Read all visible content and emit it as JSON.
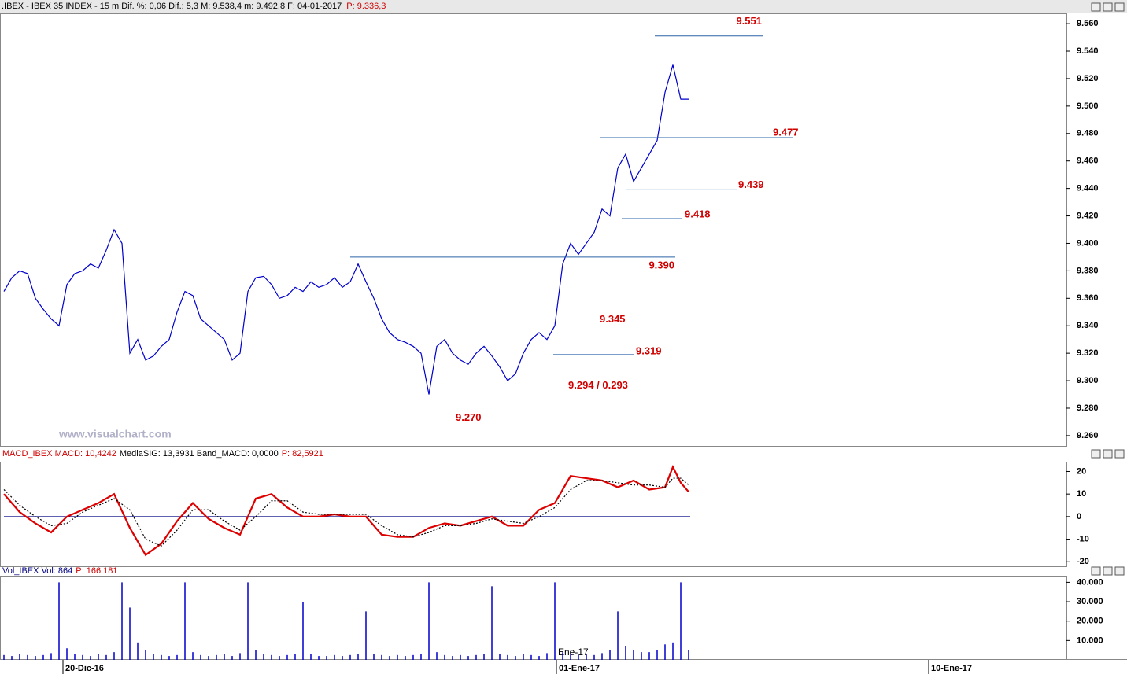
{
  "header": {
    "title": ".IBEX - IBEX 35 INDEX - 15 m  Dif. %: 0,06  Dif.: 5,3  M: 9.538,4  m: 9.492,8  F: 04-01-2017",
    "price": "P: 9.336,3"
  },
  "watermark": "www.visualchart.com",
  "chart_data": [
    {
      "type": "line",
      "title": "IBEX 35 INDEX",
      "x": [
        0,
        1,
        2,
        3,
        4,
        5,
        6,
        7,
        8,
        9,
        10,
        11,
        12,
        13,
        14,
        15,
        16,
        17,
        18,
        19,
        20,
        21,
        22,
        23,
        24,
        25,
        26,
        27,
        28,
        29,
        30,
        31,
        32,
        33,
        34,
        35,
        36,
        37,
        38,
        39,
        40,
        41,
        42,
        43,
        44,
        45,
        46,
        47,
        48,
        49,
        50,
        51,
        52,
        53,
        54,
        55,
        56,
        57,
        58,
        59,
        60,
        61,
        62,
        63,
        64,
        65,
        66,
        67,
        68,
        69,
        70,
        71,
        72,
        73,
        74,
        75,
        76,
        77,
        78,
        79,
        80,
        81,
        82,
        83,
        84,
        85,
        86,
        87
      ],
      "series": [
        {
          "name": "IBEX",
          "color": "#0000cc",
          "values": [
            9.365,
            9.375,
            9.38,
            9.378,
            9.36,
            9.352,
            9.345,
            9.34,
            9.37,
            9.378,
            9.38,
            9.385,
            9.382,
            9.395,
            9.41,
            9.4,
            9.32,
            9.33,
            9.315,
            9.318,
            9.325,
            9.33,
            9.35,
            9.365,
            9.362,
            9.345,
            9.34,
            9.335,
            9.33,
            9.315,
            9.32,
            9.365,
            9.375,
            9.376,
            9.37,
            9.36,
            9.362,
            9.368,
            9.365,
            9.372,
            9.368,
            9.37,
            9.375,
            9.368,
            9.372,
            9.385,
            9.372,
            9.36,
            9.345,
            9.335,
            9.33,
            9.328,
            9.325,
            9.32,
            9.29,
            9.325,
            9.33,
            9.32,
            9.315,
            9.312,
            9.32,
            9.325,
            9.318,
            9.31,
            9.3,
            9.305,
            9.32,
            9.33,
            9.335,
            9.33,
            9.34,
            9.385,
            9.4,
            9.392,
            9.4,
            9.408,
            9.425,
            9.42,
            9.455,
            9.465,
            9.445,
            9.455,
            9.465,
            9.475,
            9.51,
            9.53,
            9.505,
            9.505
          ]
        }
      ],
      "xlim": [
        0,
        135
      ],
      "ylim": [
        9.2525,
        9.5675
      ],
      "yticks": [
        {
          "value": 9.26,
          "label": "9.260"
        },
        {
          "value": 9.28,
          "label": "9.280"
        },
        {
          "value": 9.3,
          "label": "9.300"
        },
        {
          "value": 9.32,
          "label": "9.320"
        },
        {
          "value": 9.34,
          "label": "9.340"
        },
        {
          "value": 9.36,
          "label": "9.360"
        },
        {
          "value": 9.38,
          "label": "9.380"
        },
        {
          "value": 9.4,
          "label": "9.400"
        },
        {
          "value": 9.42,
          "label": "9.420"
        },
        {
          "value": 9.44,
          "label": "9.440"
        },
        {
          "value": 9.46,
          "label": "9.460"
        },
        {
          "value": 9.48,
          "label": "9.480"
        },
        {
          "value": 9.5,
          "label": "9.500"
        },
        {
          "value": 9.52,
          "label": "9.520"
        },
        {
          "value": 9.54,
          "label": "9.540"
        },
        {
          "value": 9.56,
          "label": "9.560"
        }
      ],
      "levels": [
        {
          "value": 9.551,
          "label": "9.551",
          "x": [
            82.7,
            96.5
          ]
        },
        {
          "value": 9.477,
          "label": "9.477",
          "x": [
            75.7,
            100.3
          ]
        },
        {
          "value": 9.439,
          "label": "9.439",
          "x": [
            79,
            93.2
          ]
        },
        {
          "value": 9.418,
          "label": "9.418",
          "x": [
            78.5,
            86.2
          ]
        },
        {
          "value": 9.39,
          "label": "9.390",
          "x": [
            44,
            85.3
          ]
        },
        {
          "value": 9.345,
          "label": "9.345",
          "x": [
            34.3,
            75.2
          ]
        },
        {
          "value": 9.319,
          "label": "9.319",
          "x": [
            69.8,
            80
          ]
        },
        {
          "value": 9.294,
          "label": "9.294 / 0.293",
          "x": [
            63.6,
            71.5
          ]
        },
        {
          "value": 9.27,
          "label": "9.270",
          "x": [
            53.6,
            57.3
          ]
        }
      ],
      "level_color": "#2a64a8",
      "label_color": "#d00000"
    },
    {
      "type": "line",
      "title": "MACD_IBEX MACD: 10,4242",
      "subtitle": "MediaSIG: 13,3931  Band_MACD: 0,0000",
      "note": "P: 82,5921",
      "x": [
        0,
        2,
        4,
        6,
        8,
        10,
        12,
        14,
        16,
        18,
        20,
        22,
        24,
        26,
        28,
        30,
        32,
        34,
        36,
        38,
        40,
        42,
        44,
        46,
        48,
        50,
        52,
        54,
        56,
        58,
        60,
        62,
        64,
        66,
        68,
        70,
        72,
        74,
        76,
        78,
        80,
        82,
        84,
        85,
        86,
        87
      ],
      "series": [
        {
          "name": "MACD",
          "color": "#dd0000",
          "values": [
            10,
            2,
            -3,
            -7,
            0,
            3,
            6,
            10,
            -5,
            -17,
            -12,
            -2,
            6,
            -1,
            -5,
            -8,
            8,
            10,
            4,
            0,
            0,
            1,
            0,
            0,
            -8,
            -9,
            -9,
            -5,
            -3,
            -4,
            -2,
            0,
            -4,
            -4,
            3,
            6,
            18,
            17,
            16,
            13,
            16,
            12,
            13,
            22,
            15,
            11
          ]
        },
        {
          "name": "MediaSIG",
          "color": "#000000",
          "values": [
            12,
            5,
            0,
            -4,
            -3,
            2,
            5,
            8,
            3,
            -10,
            -13,
            -6,
            3,
            3,
            -2,
            -6,
            0,
            7,
            7,
            2,
            1,
            1,
            1,
            1,
            -4,
            -8,
            -9,
            -7,
            -4,
            -4,
            -3,
            -1,
            -2,
            -3,
            0,
            4,
            12,
            16,
            16,
            15,
            14,
            14,
            13,
            17,
            17,
            14
          ]
        }
      ],
      "band": 0,
      "xlim": [
        0,
        135
      ],
      "ylim": [
        -22,
        24
      ],
      "yticks": [
        20,
        10,
        0,
        -10,
        -20
      ]
    },
    {
      "type": "bar",
      "title": "Vol_IBEX Vol: 864",
      "note": "P: 166.181",
      "x": [
        0,
        1,
        2,
        3,
        4,
        5,
        6,
        7,
        8,
        9,
        10,
        11,
        12,
        13,
        14,
        15,
        16,
        17,
        18,
        19,
        20,
        21,
        22,
        23,
        24,
        25,
        26,
        27,
        28,
        29,
        30,
        31,
        32,
        33,
        34,
        35,
        36,
        37,
        38,
        39,
        40,
        41,
        42,
        43,
        44,
        45,
        46,
        47,
        48,
        49,
        50,
        51,
        52,
        53,
        54,
        55,
        56,
        57,
        58,
        59,
        60,
        61,
        62,
        63,
        64,
        65,
        66,
        67,
        68,
        69,
        70,
        71,
        72,
        73,
        74,
        75,
        76,
        77,
        78,
        79,
        80,
        81,
        82,
        83,
        84,
        85,
        86,
        87
      ],
      "values": [
        2500,
        2000,
        3000,
        2500,
        2000,
        2500,
        3500,
        40000,
        6000,
        3000,
        2500,
        2000,
        3000,
        2500,
        4000,
        40000,
        27000,
        9000,
        5000,
        3000,
        2500,
        2000,
        2500,
        40000,
        4000,
        2500,
        2000,
        2500,
        3000,
        2000,
        3500,
        40000,
        5000,
        3000,
        2500,
        2000,
        2500,
        3000,
        30000,
        3000,
        2000,
        2000,
        2500,
        2000,
        2500,
        3000,
        25000,
        3000,
        2500,
        2000,
        2500,
        2000,
        2500,
        3000,
        40000,
        4000,
        2500,
        2000,
        2500,
        2000,
        2500,
        3000,
        38000,
        3000,
        2500,
        2000,
        3000,
        2500,
        2000,
        3500,
        40000,
        4000,
        3000,
        2500,
        3000,
        2500,
        3500,
        5000,
        25000,
        7000,
        5000,
        4000,
        4000,
        5000,
        8000,
        9000,
        40000,
        5000
      ],
      "color": "#0000cc",
      "xlim": [
        0,
        135
      ],
      "ylim": [
        0,
        43000
      ],
      "yticks": [
        {
          "value": 10000,
          "label": "10.000"
        },
        {
          "value": 20000,
          "label": "20.000"
        },
        {
          "value": 30000,
          "label": "30.000"
        },
        {
          "value": 40000,
          "label": "40.000"
        }
      ],
      "xticks": [
        {
          "value": 7.5,
          "label": "20-Dic-16"
        },
        {
          "value": 70.2,
          "label": "01-Ene-17"
        },
        {
          "value": 117.5,
          "label": "10-Ene-17"
        }
      ],
      "period_label": "Ene-17"
    }
  ]
}
